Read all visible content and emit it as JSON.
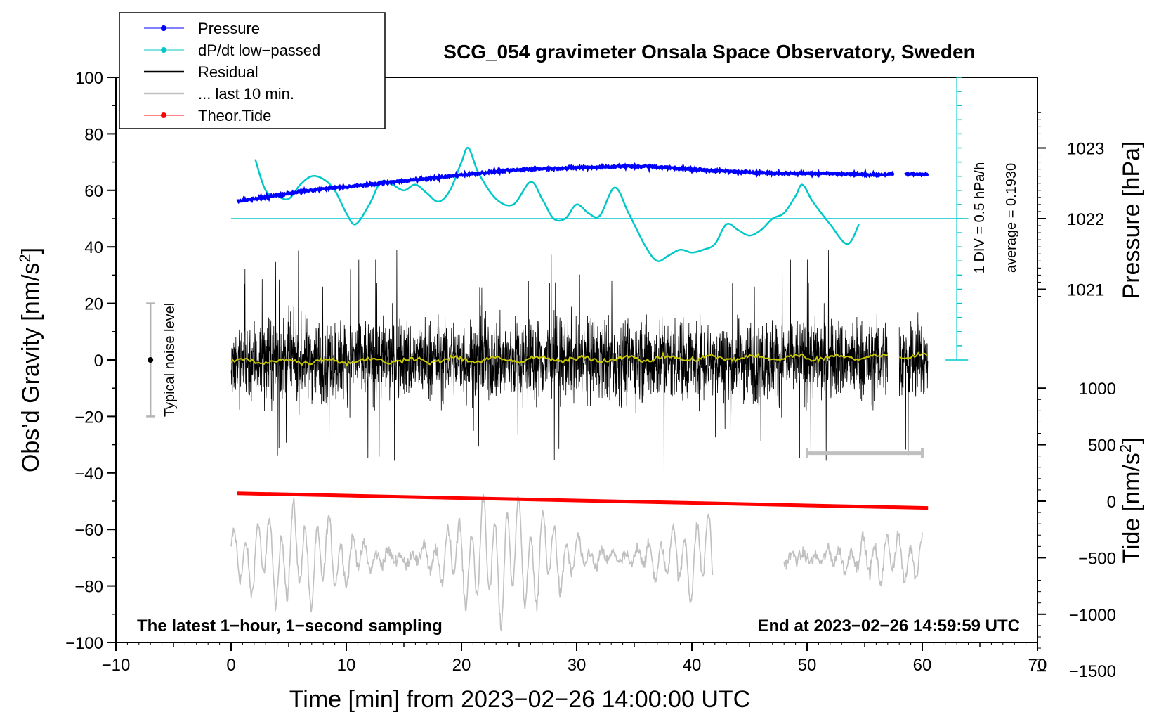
{
  "chart_data": {
    "type": "line",
    "title": "SCG_054 gravimeter Onsala Space Observatory, Sweden",
    "xlabel": "Time [min] from 2023−02−26 14:00:00 UTC",
    "ylabel_left_prefix": "Obs’d Gravity [nm/s",
    "ylabel_left_sup": "2",
    "ylabel_left_suffix": "]",
    "ylabel_right_pressure": "Pressure [hPa]",
    "ylabel_right_tide_prefix": "Tide [nm/s",
    "ylabel_right_tide_sup": "2",
    "ylabel_right_tide_suffix": "]",
    "xlim": [
      -10,
      70
    ],
    "ylim": [
      -100,
      100
    ],
    "x_ticks": [
      "−10",
      "0",
      "10",
      "20",
      "30",
      "40",
      "50",
      "60",
      "70"
    ],
    "x_tick_values": [
      -10,
      0,
      10,
      20,
      30,
      40,
      50,
      60,
      70
    ],
    "y_ticks": [
      "100",
      "80",
      "60",
      "40",
      "20",
      "0",
      "−20",
      "−40",
      "−60",
      "−80",
      "−100"
    ],
    "y_tick_values": [
      100,
      80,
      60,
      40,
      20,
      0,
      -20,
      -40,
      -60,
      -80,
      -100
    ],
    "pressure_ticks": [
      "1023",
      "1022",
      "1021"
    ],
    "pressure_tick_values": [
      1023,
      1022,
      1021
    ],
    "pressure_axis_map": {
      "hpa_ref": 1022,
      "gravity_ref": 50,
      "gravity_per_hpa": 25
    },
    "tide_ticks": [
      "1000",
      "500",
      "0",
      "−500",
      "−1000",
      "−1500"
    ],
    "tide_tick_values": [
      1000,
      500,
      0,
      -500,
      -1000,
      -1500
    ],
    "tide_axis_map": {
      "tide_ref": 0,
      "gravity_ref": -50,
      "gravity_per_unit": 0.04
    },
    "legend": [
      {
        "label": "Pressure",
        "color": "#0000ff",
        "marker": true
      },
      {
        "label": "dP/dt low−passed",
        "color": "#00c8c8",
        "marker": true
      },
      {
        "label": "Residual",
        "color": "#000000",
        "marker": false
      },
      {
        "label": "... last 10 min.",
        "color": "#c0c0c0",
        "marker": false
      },
      {
        "label": "Theor.Tide",
        "color": "#ff0000",
        "marker": true
      }
    ],
    "colors": {
      "pressure": "#0000ff",
      "dpdt": "#00c8c8",
      "residual": "#000000",
      "residual_smooth": "#c8c800",
      "last10": "#c0c0c0",
      "tide": "#ff0000",
      "noise_bar": "#b4b4b4"
    },
    "series": [
      {
        "name": "Pressure",
        "units": "hPa",
        "x": [
          0.5,
          2,
          4,
          6,
          8,
          10,
          12,
          14,
          16,
          18,
          20,
          22,
          24,
          26,
          28,
          30,
          32,
          34,
          36,
          38,
          40,
          42,
          44,
          46,
          48,
          50,
          52,
          54,
          56,
          57.5
        ],
        "values": [
          1022.25,
          1022.28,
          1022.33,
          1022.38,
          1022.42,
          1022.45,
          1022.48,
          1022.52,
          1022.55,
          1022.58,
          1022.62,
          1022.65,
          1022.68,
          1022.7,
          1022.71,
          1022.72,
          1022.73,
          1022.74,
          1022.74,
          1022.72,
          1022.7,
          1022.68,
          1022.66,
          1022.65,
          1022.64,
          1022.64,
          1022.64,
          1022.63,
          1022.62,
          1022.63
        ],
        "x2": [
          58.5,
          59.5,
          60.5
        ],
        "values2": [
          1022.63,
          1022.63,
          1022.63
        ]
      },
      {
        "name": "dP/dt low-passed",
        "units": "nm/s2 (plot units)",
        "x": [
          2.1,
          3,
          4,
          5,
          6,
          7,
          8,
          9,
          10,
          10.8,
          12,
          13,
          14,
          15,
          16,
          17,
          18,
          19,
          20,
          20.6,
          21.5,
          23,
          24.5,
          26,
          27,
          28,
          29,
          30,
          31,
          32,
          33.3,
          34.5,
          36,
          37,
          38,
          39,
          40,
          41,
          42,
          43,
          44,
          45,
          46,
          47,
          48,
          49,
          49.6,
          50.5,
          52,
          53.5,
          54.5
        ],
        "values": [
          71,
          60,
          58,
          57,
          62,
          65,
          64,
          60,
          52,
          48,
          55,
          63,
          62,
          60,
          62,
          59,
          56,
          60,
          70,
          75,
          66,
          57,
          55,
          63,
          57,
          50,
          50,
          55,
          52,
          51,
          61,
          52,
          40,
          35,
          37,
          39,
          38,
          39,
          41,
          48,
          46,
          44,
          46,
          50,
          52,
          58,
          62,
          56,
          48,
          41,
          48
        ]
      },
      {
        "name": "Residual",
        "units": "nm/s2",
        "x_range": [
          0,
          57
        ],
        "x_range2": [
          58,
          60.5
        ],
        "envelope": 20,
        "max_spike": 40
      },
      {
        "name": "... last 10 min.",
        "units": "nm/s2 (offset)",
        "x_range": [
          0,
          41.8
        ],
        "x_range2": [
          48,
          60
        ],
        "center": -70,
        "amplitude": 15
      },
      {
        "name": "Theor.Tide",
        "units": "nm/s2 (tide axis)",
        "x": [
          0.5,
          60.5
        ],
        "values": [
          70,
          -60
        ]
      }
    ],
    "reference_line": {
      "name": "dP/dt zero",
      "value": 50
    },
    "dpdt_scale_bar": {
      "x": 63,
      "y_bottom": 0,
      "y_top": 100,
      "div_count": 20
    },
    "noise_bar": {
      "x": -7,
      "y_low": -20,
      "y_high": 20,
      "center": 0
    },
    "last10_bar": {
      "x_start": 50,
      "x_end": 60,
      "y": -33
    },
    "annotations": {
      "div_note": "1 DIV = 0.5 hPa/h",
      "average_note": "average = 0.1930",
      "noise_label": "Typical noise level",
      "bottom_left": "The latest 1−hour, 1−second sampling",
      "bottom_right": "End at 2023−02−26 14:59:59 UTC"
    }
  }
}
